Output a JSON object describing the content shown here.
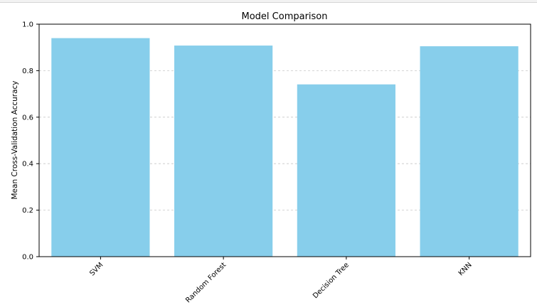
{
  "chart_data": {
    "type": "bar",
    "title": "Model Comparison",
    "xlabel": "",
    "ylabel": "Mean Cross-Validation Accuracy",
    "categories": [
      "SVM",
      "Random Forest",
      "Decision Tree",
      "KNN"
    ],
    "values": [
      0.94,
      0.908,
      0.741,
      0.905
    ],
    "ylim": [
      0,
      1.0
    ],
    "yticks": [
      "0.0",
      "0.2",
      "0.4",
      "0.6",
      "0.8",
      "1.0"
    ],
    "grid": "y-dashed",
    "colors": {
      "bar": "#87ceeb",
      "grid": "#c8c8c8",
      "axis": "#000000"
    }
  }
}
